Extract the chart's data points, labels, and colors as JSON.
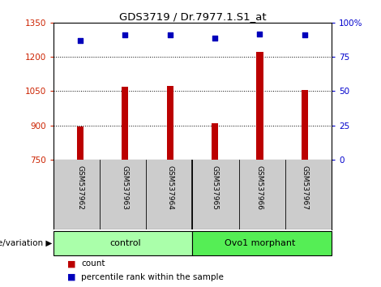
{
  "title": "GDS3719 / Dr.7977.1.S1_at",
  "samples": [
    "GSM537962",
    "GSM537963",
    "GSM537964",
    "GSM537965",
    "GSM537966",
    "GSM537967"
  ],
  "bar_values": [
    893,
    1068,
    1072,
    908,
    1224,
    1054
  ],
  "percentile_values": [
    87,
    91,
    91,
    89,
    92,
    91
  ],
  "bar_bottom": 750,
  "ylim_left": [
    750,
    1350
  ],
  "ylim_right": [
    0,
    100
  ],
  "yticks_left": [
    750,
    900,
    1050,
    1200,
    1350
  ],
  "ytick_labels_left": [
    "750",
    "900",
    "1050",
    "1200",
    "1350"
  ],
  "yticks_right": [
    0,
    25,
    50,
    75,
    100
  ],
  "ytick_labels_right": [
    "0",
    "25",
    "50",
    "75",
    "100%"
  ],
  "bar_color": "#bb0000",
  "percentile_color": "#0000bb",
  "grid_color": "#000000",
  "groups": [
    {
      "label": "control",
      "color": "#aaffaa"
    },
    {
      "label": "Ovo1 morphant",
      "color": "#55ee55"
    }
  ],
  "group_label_prefix": "genotype/variation",
  "legend_count_label": "count",
  "legend_percentile_label": "percentile rank within the sample",
  "left_axis_color": "#cc2200",
  "right_axis_color": "#0000cc",
  "tick_area_color": "#cccccc",
  "bar_width": 0.15
}
